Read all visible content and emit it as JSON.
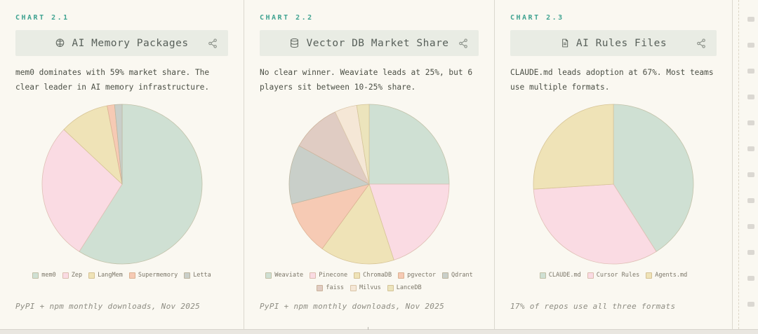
{
  "charts": [
    {
      "label": "CHART 2.1",
      "icon": "brain-icon",
      "title": "AI Memory Packages",
      "description": "mem0 dominates with 59% market share. The clear leader in AI memory infrastructure.",
      "caption": "PyPI + npm monthly downloads, Nov 2025"
    },
    {
      "label": "CHART 2.2",
      "icon": "database-icon",
      "title": "Vector DB Market Share",
      "description": "No clear winner. Weaviate leads at 25%, but 6 players sit between 10-25% share.",
      "caption": "PyPI + npm monthly downloads, Nov 2025"
    },
    {
      "label": "CHART 2.3",
      "icon": "file-icon",
      "title": "AI Rules Files",
      "description": "CLAUDE.md leads adoption at 67%. Most teams use multiple formats.",
      "caption": "17% of repos use all three formats"
    }
  ],
  "chart_data": [
    {
      "type": "pie",
      "title": "AI Memory Packages",
      "labels": [
        "mem0",
        "Zep",
        "LangMem",
        "Supermemory",
        "Letta"
      ],
      "values": [
        59,
        28,
        10,
        1.5,
        1.5
      ],
      "colors": [
        "#cfe0d3",
        "#fadbe3",
        "#efe3b7",
        "#f6cab4",
        "#c9cfc9"
      ],
      "start_angle": "top",
      "direction": "clockwise",
      "legend_position": "bottom",
      "source_note": "PyPI + npm monthly downloads, Nov 2025"
    },
    {
      "type": "pie",
      "title": "Vector DB Market Share",
      "labels": [
        "Weaviate",
        "Pinecone",
        "ChromaDB",
        "pgvector",
        "Qdrant",
        "faiss",
        "Milvus",
        "LanceDB"
      ],
      "values": [
        25,
        20,
        15,
        11,
        12,
        10,
        4.5,
        2.5
      ],
      "colors": [
        "#cfe0d3",
        "#fadbe3",
        "#efe3b7",
        "#f6cab4",
        "#c9cfc9",
        "#e0ccc3",
        "#f5e7d6",
        "#ece4bc"
      ],
      "start_angle": "top",
      "direction": "clockwise",
      "legend_position": "bottom",
      "legend_break_after": 5,
      "source_note": "PyPI + npm monthly downloads, Nov 2025"
    },
    {
      "type": "pie",
      "title": "AI Rules Files",
      "labels": [
        "CLAUDE.md",
        "Cursor Rules",
        "Agents.md"
      ],
      "values": [
        41,
        33,
        26
      ],
      "colors": [
        "#cfe0d3",
        "#fadbe3",
        "#efe3b7"
      ],
      "start_angle": "top",
      "direction": "clockwise",
      "legend_position": "bottom",
      "source_note": "17% of repos use all three formats"
    }
  ],
  "theme": {
    "background": "#faf8f1",
    "accent_teal": "#3fa391",
    "title_bar_bg": "#e9ece4",
    "wedge_border_mix": "#a5834f"
  }
}
